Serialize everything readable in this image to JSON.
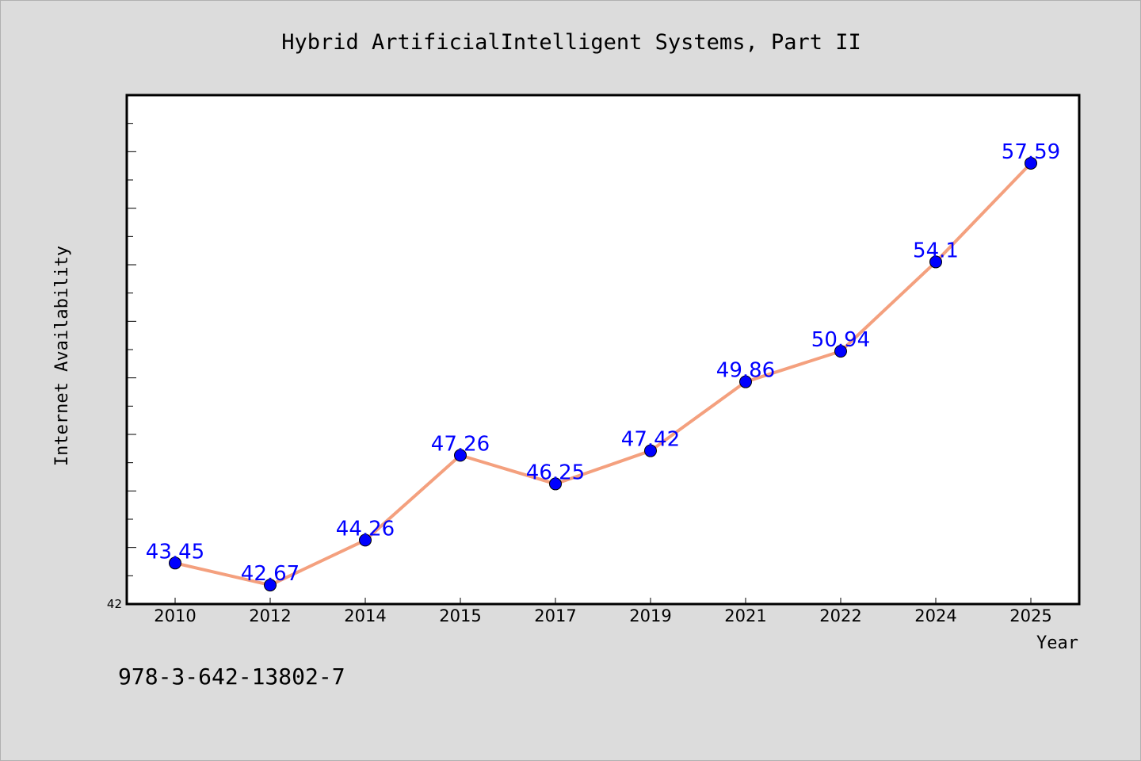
{
  "colors": {
    "background": "#dcdcdc",
    "plot_background": "#ffffff",
    "line": "#f4a07e",
    "marker": "#0000ff",
    "data_label": "#0000ff",
    "axis": "#000000"
  },
  "footer": {
    "isbn": "978-3-642-13802-7"
  },
  "chart_data": {
    "type": "line",
    "title": "Hybrid ArtificialIntelligent Systems, Part II",
    "xlabel": "Year",
    "ylabel": "Internet Availability",
    "categories": [
      "2010",
      "2012",
      "2014",
      "2015",
      "2017",
      "2019",
      "2021",
      "2022",
      "2024",
      "2025"
    ],
    "series": [
      {
        "values": [
          43.45,
          42.67,
          44.26,
          47.26,
          46.25,
          47.42,
          49.86,
          50.94,
          54.1,
          57.59
        ],
        "labels": [
          "43.45",
          "42.67",
          "44.26",
          "47.26",
          "46.25",
          "47.42",
          "49.86",
          "50.94",
          "54.1",
          "57.59"
        ]
      }
    ],
    "ylim": [
      42,
      60
    ],
    "ytick_labels": [
      "42"
    ],
    "grid": false,
    "legend": "none"
  }
}
